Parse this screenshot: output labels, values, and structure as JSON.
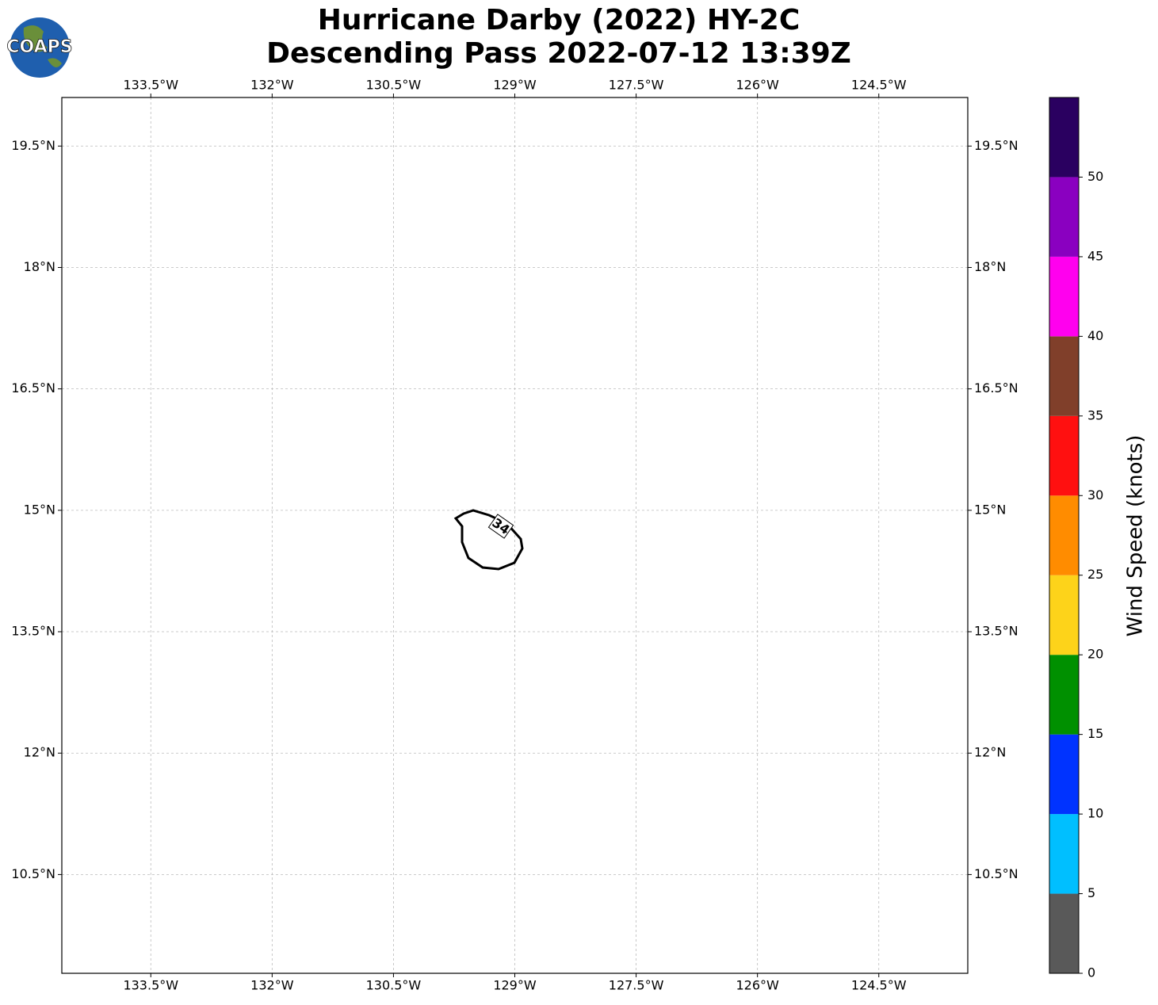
{
  "logo_text": "COAPS",
  "chart_data": {
    "type": "barb_map",
    "title": "Hurricane Darby (2022) HY-2C",
    "subtitle": "Descending Pass 2022-07-12 13:39Z",
    "xlim": [
      -134.6,
      -123.4
    ],
    "ylim": [
      9.28,
      20.1
    ],
    "xticks": [
      {
        "value": -133.5,
        "label": "133.5°W"
      },
      {
        "value": -132,
        "label": "132°W"
      },
      {
        "value": -130.5,
        "label": "130.5°W"
      },
      {
        "value": -129,
        "label": "129°W"
      },
      {
        "value": -127.5,
        "label": "127.5°W"
      },
      {
        "value": -126,
        "label": "126°W"
      },
      {
        "value": -124.5,
        "label": "124.5°W"
      }
    ],
    "yticks": [
      {
        "value": 19.5,
        "label": "19.5°N"
      },
      {
        "value": 18,
        "label": "18°N"
      },
      {
        "value": 16.5,
        "label": "16.5°N"
      },
      {
        "value": 15,
        "label": "15°N"
      },
      {
        "value": 13.5,
        "label": "13.5°N"
      },
      {
        "value": 12,
        "label": "12°N"
      },
      {
        "value": 10.5,
        "label": "10.5°N"
      }
    ],
    "grid": true,
    "contour_level": 34,
    "colorbar": {
      "label": "Wind Speed (knots)",
      "bounds": [
        0,
        5,
        10,
        15,
        20,
        25,
        30,
        35,
        40,
        45,
        50,
        55
      ],
      "colors": [
        "#595959",
        "#00bfff",
        "#0033ff",
        "#009000",
        "#fdd31a",
        "#ff8c00",
        "#ff1010",
        "#803f2a",
        "#ff00ee",
        "#8a00c0",
        "#2a0060"
      ],
      "ticks": [
        0,
        5,
        10,
        15,
        20,
        25,
        30,
        35,
        40,
        45,
        50
      ]
    }
  }
}
